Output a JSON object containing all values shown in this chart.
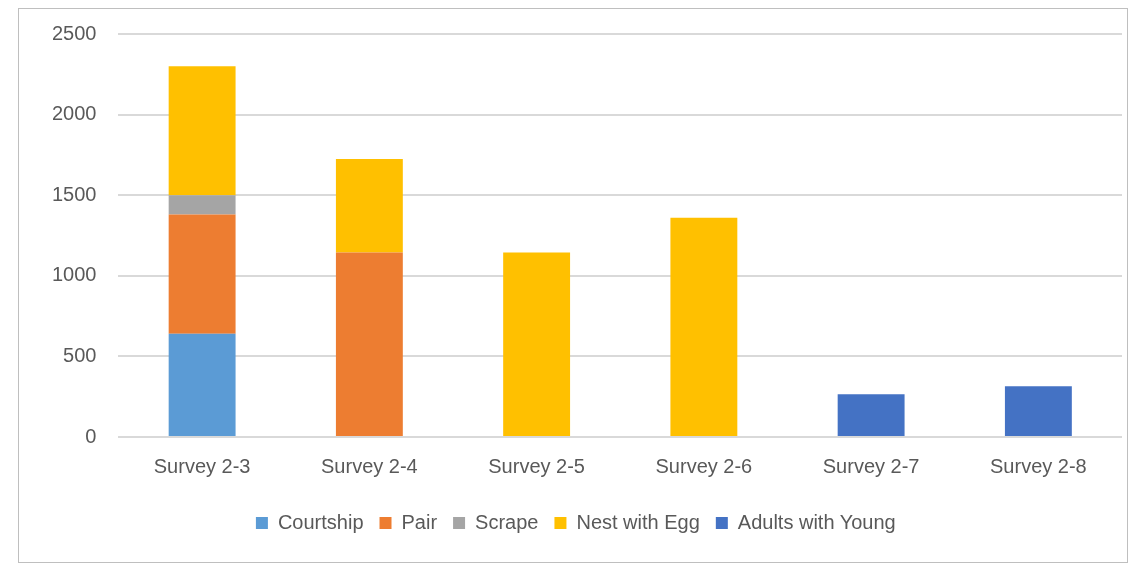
{
  "chart_data": {
    "type": "bar",
    "stacked": true,
    "categories": [
      "Survey 2-3",
      "Survey 2-4",
      "Survey 2-5",
      "Survey 2-6",
      "Survey 2-7",
      "Survey 2-8"
    ],
    "series": [
      {
        "name": "Courtship",
        "color": "#5b9bd5",
        "values": [
          640,
          null,
          null,
          null,
          null,
          null
        ]
      },
      {
        "name": "Pair",
        "color": "#ed7d31",
        "values": [
          740,
          1145,
          null,
          null,
          null,
          null
        ]
      },
      {
        "name": "Scrape",
        "color": "#a5a5a5",
        "values": [
          120,
          null,
          null,
          null,
          null,
          null
        ]
      },
      {
        "name": "Nest with Egg",
        "color": "#ffc000",
        "values": [
          800,
          580,
          1145,
          1360,
          null,
          null
        ]
      },
      {
        "name": "Adults with Young",
        "color": "#4472c4",
        "values": [
          null,
          null,
          null,
          null,
          265,
          315
        ]
      }
    ],
    "ylim": [
      0,
      2500
    ],
    "yticks": [
      0,
      500,
      1000,
      1500,
      2000,
      2500
    ],
    "grid": "y",
    "legend": "bottom"
  }
}
